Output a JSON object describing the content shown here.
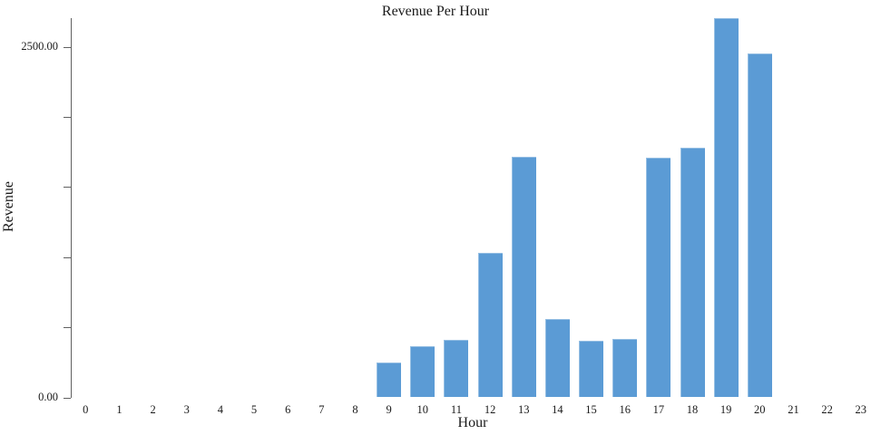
{
  "chart_data": {
    "type": "bar",
    "title": "Revenue Per Hour",
    "xlabel": "Hour",
    "ylabel": "Revenue",
    "categories": [
      "0",
      "1",
      "2",
      "3",
      "4",
      "5",
      "6",
      "7",
      "8",
      "9",
      "10",
      "11",
      "12",
      "13",
      "14",
      "15",
      "16",
      "17",
      "18",
      "19",
      "20",
      "21",
      "22",
      "23"
    ],
    "values": [
      0,
      0,
      0,
      0,
      0,
      0,
      0,
      0,
      0,
      249,
      363,
      410,
      1028,
      1713,
      561,
      406,
      417,
      1709,
      1778,
      2704,
      2454,
      0,
      0,
      0
    ],
    "ylim": [
      0,
      2704
    ],
    "y_ticks": [
      {
        "value": 0,
        "label": "0.00"
      },
      {
        "value": 500,
        "label": ""
      },
      {
        "value": 1000,
        "label": ""
      },
      {
        "value": 1500,
        "label": ""
      },
      {
        "value": 2000,
        "label": ""
      },
      {
        "value": 2500,
        "label": "2500.00"
      }
    ],
    "grid": false,
    "legend": null,
    "bar_color": "#5b9bd5",
    "axis_color": "#606060",
    "text_color": "#1a1a1a"
  }
}
